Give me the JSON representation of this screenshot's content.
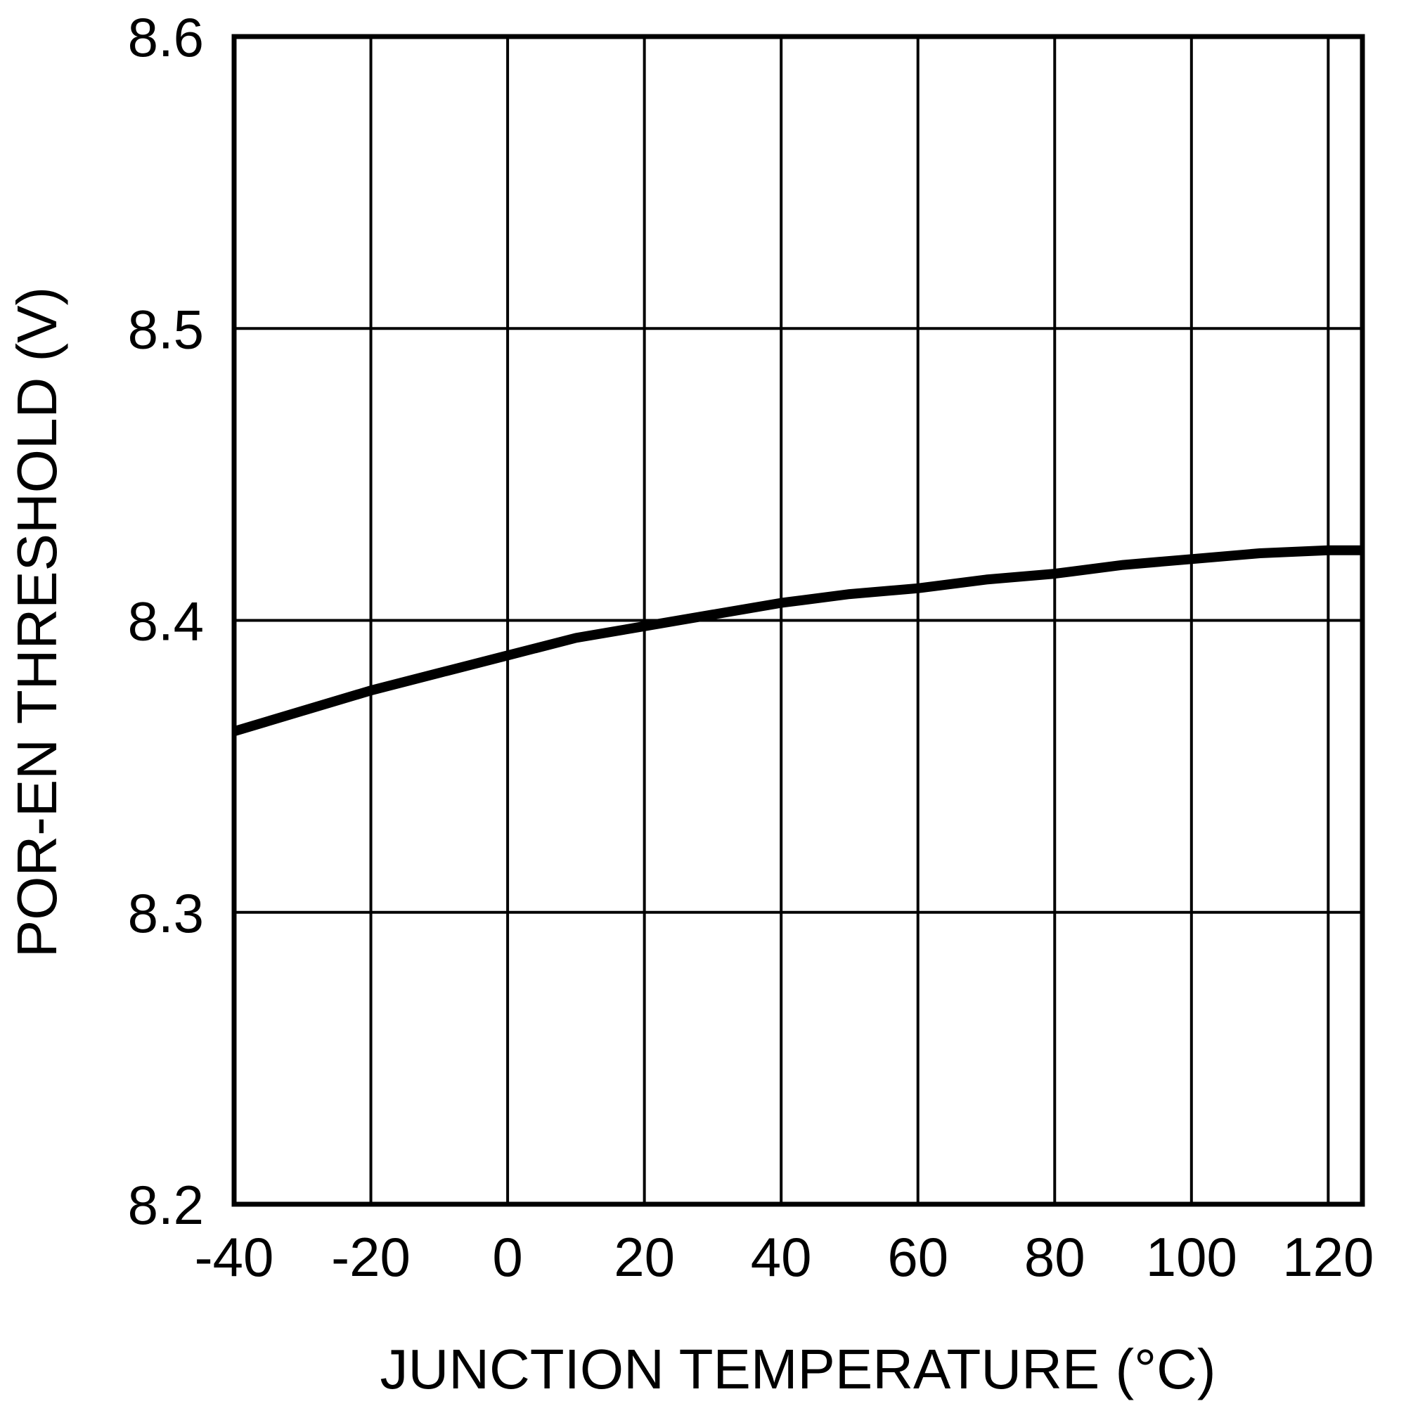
{
  "chart_data": {
    "type": "line",
    "title": "",
    "xlabel": "JUNCTION TEMPERATURE (°C)",
    "ylabel": "POR-EN THRESHOLD (V)",
    "xlim": [
      -40,
      125
    ],
    "ylim": [
      8.2,
      8.6
    ],
    "xticks": [
      -40,
      -20,
      0,
      20,
      40,
      60,
      80,
      100,
      120
    ],
    "xtick_labels": [
      "-40",
      "-20",
      "0",
      "20",
      "40",
      "60",
      "80",
      "100",
      "120"
    ],
    "yticks": [
      8.2,
      8.3,
      8.4,
      8.5,
      8.6
    ],
    "ytick_labels": [
      "8.2",
      "8.3",
      "8.4",
      "8.5",
      "8.6"
    ],
    "grid": true,
    "legend": "none",
    "series": [
      {
        "name": "POR-EN threshold",
        "color": "#000000",
        "x": [
          -40,
          -30,
          -20,
          -10,
          0,
          10,
          20,
          30,
          40,
          50,
          60,
          70,
          80,
          90,
          100,
          110,
          120,
          125
        ],
        "y": [
          8.362,
          8.369,
          8.376,
          8.382,
          8.388,
          8.394,
          8.398,
          8.402,
          8.406,
          8.409,
          8.411,
          8.414,
          8.416,
          8.419,
          8.421,
          8.423,
          8.424,
          8.424
        ]
      }
    ]
  }
}
